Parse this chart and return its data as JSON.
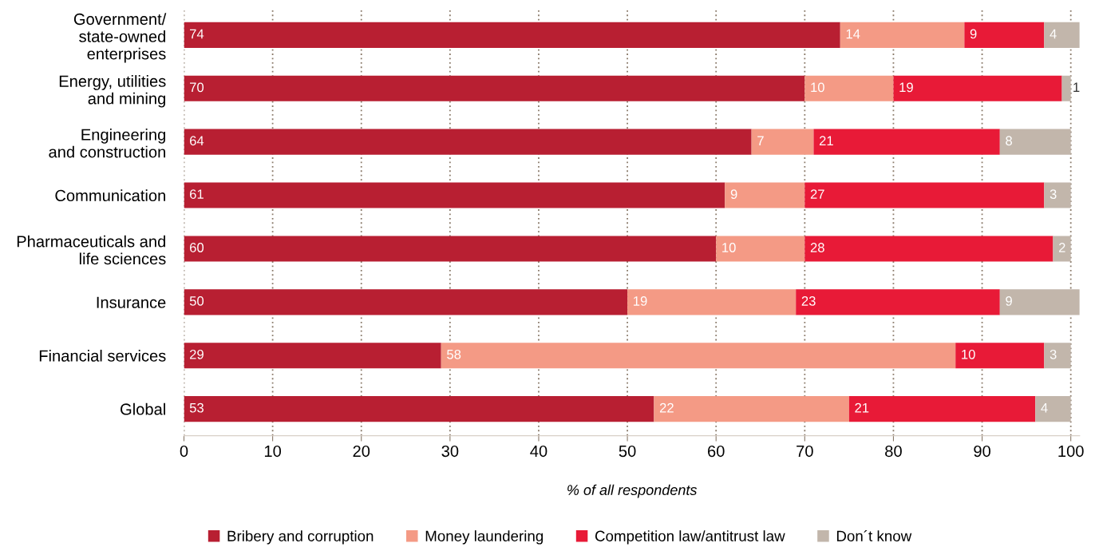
{
  "chart_data": {
    "type": "bar",
    "orientation": "horizontal",
    "stacked": true,
    "xlabel": "% of all respondents",
    "categories": [
      "Government/\nstate-owned\nenterprises",
      "Energy, utilities\nand mining",
      "Engineering\nand construction",
      "Communication",
      "Pharmaceuticals and\nlife sciences",
      "Insurance",
      "Financial services",
      "Global"
    ],
    "series": [
      {
        "name": "Bribery and corruption",
        "color": "#b81f32",
        "values": [
          74,
          70,
          64,
          61,
          60,
          50,
          29,
          53
        ]
      },
      {
        "name": "Money laundering",
        "color": "#f49a85",
        "values": [
          14,
          10,
          7,
          9,
          10,
          19,
          58,
          22
        ]
      },
      {
        "name": "Competition law/antitrust law",
        "color": "#e81a37",
        "values": [
          9,
          19,
          21,
          27,
          28,
          23,
          10,
          21
        ]
      },
      {
        "name": "Don´t know",
        "color": "#c2b6ab",
        "values": [
          4,
          1,
          8,
          3,
          2,
          9,
          3,
          4
        ]
      }
    ],
    "xlim": [
      0,
      101
    ],
    "xticks": [
      0,
      10,
      20,
      30,
      40,
      50,
      60,
      70,
      80,
      90,
      100
    ],
    "grid": "x",
    "legend": "bottom",
    "data_labels": true
  }
}
